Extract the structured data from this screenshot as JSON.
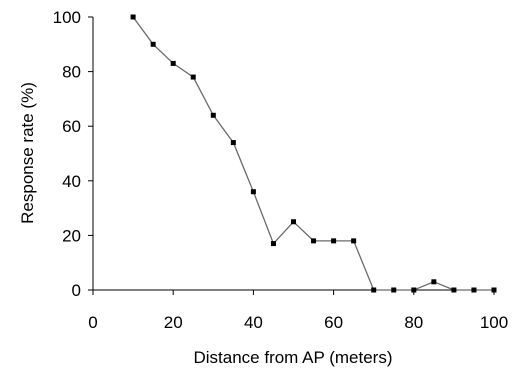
{
  "chart_data": {
    "type": "line",
    "title": "",
    "xlabel": "Distance from AP (meters)",
    "ylabel": "Response rate (%)",
    "xlim": [
      0,
      100
    ],
    "ylim": [
      0,
      100
    ],
    "x_ticks": [
      0,
      20,
      40,
      60,
      80,
      100
    ],
    "y_ticks": [
      0,
      20,
      40,
      60,
      80,
      100
    ],
    "grid": false,
    "legend": "none",
    "series": [
      {
        "color": "#000000",
        "marker": "square",
        "points": [
          {
            "x": 10,
            "y": 100
          },
          {
            "x": 15,
            "y": 90
          },
          {
            "x": 20,
            "y": 83
          },
          {
            "x": 25,
            "y": 78
          },
          {
            "x": 30,
            "y": 64
          },
          {
            "x": 35,
            "y": 54
          },
          {
            "x": 40,
            "y": 36
          },
          {
            "x": 45,
            "y": 17
          },
          {
            "x": 50,
            "y": 25
          },
          {
            "x": 55,
            "y": 18
          },
          {
            "x": 60,
            "y": 18
          },
          {
            "x": 65,
            "y": 18
          },
          {
            "x": 70,
            "y": 0
          },
          {
            "x": 75,
            "y": 0
          },
          {
            "x": 80,
            "y": 0
          },
          {
            "x": 85,
            "y": 3
          },
          {
            "x": 90,
            "y": 0
          },
          {
            "x": 95,
            "y": 0
          },
          {
            "x": 100,
            "y": 0
          }
        ]
      }
    ]
  }
}
